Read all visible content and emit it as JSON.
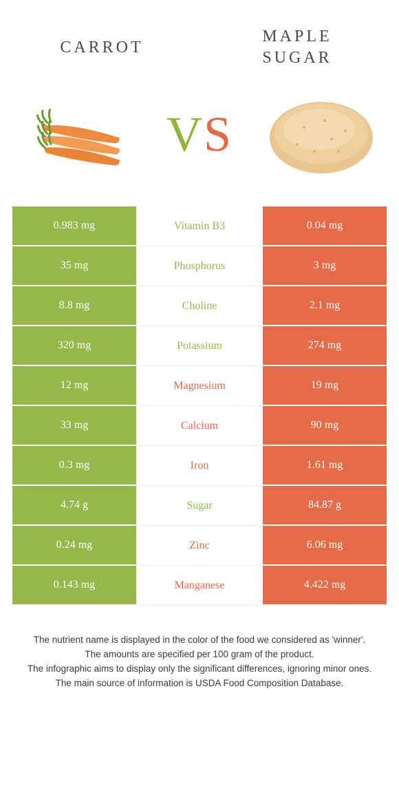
{
  "colors": {
    "left": "#95b84a",
    "right": "#e46b47",
    "text_dark": "#4a4a4a",
    "background": "#ffffff"
  },
  "header": {
    "left_title": "Carrot",
    "right_title": "Maple sugar",
    "vs_v": "V",
    "vs_s": "S"
  },
  "rows": [
    {
      "left": "0.983 mg",
      "label": "Vitamin B3",
      "right": "0.04 mg",
      "winner": "left"
    },
    {
      "left": "35 mg",
      "label": "Phosphorus",
      "right": "3 mg",
      "winner": "left"
    },
    {
      "left": "8.8 mg",
      "label": "Choline",
      "right": "2.1 mg",
      "winner": "left"
    },
    {
      "left": "320 mg",
      "label": "Potassium",
      "right": "274 mg",
      "winner": "left"
    },
    {
      "left": "12 mg",
      "label": "Magnesium",
      "right": "19 mg",
      "winner": "right"
    },
    {
      "left": "33 mg",
      "label": "Calcium",
      "right": "90 mg",
      "winner": "right"
    },
    {
      "left": "0.3 mg",
      "label": "Iron",
      "right": "1.61 mg",
      "winner": "right"
    },
    {
      "left": "4.74 g",
      "label": "Sugar",
      "right": "84.87 g",
      "winner": "left"
    },
    {
      "left": "0.24 mg",
      "label": "Zinc",
      "right": "6.06 mg",
      "winner": "right"
    },
    {
      "left": "0.143 mg",
      "label": "Manganese",
      "right": "4.422 mg",
      "winner": "right"
    }
  ],
  "footer": {
    "l1": "The nutrient name is displayed in the color of the food we considered as 'winner'.",
    "l2": "The amounts are specified per 100 gram of the product.",
    "l3": "The infographic aims to display only the significant differences, ignoring minor ones.",
    "l4": "The main source of information is USDA Food Composition Database."
  }
}
